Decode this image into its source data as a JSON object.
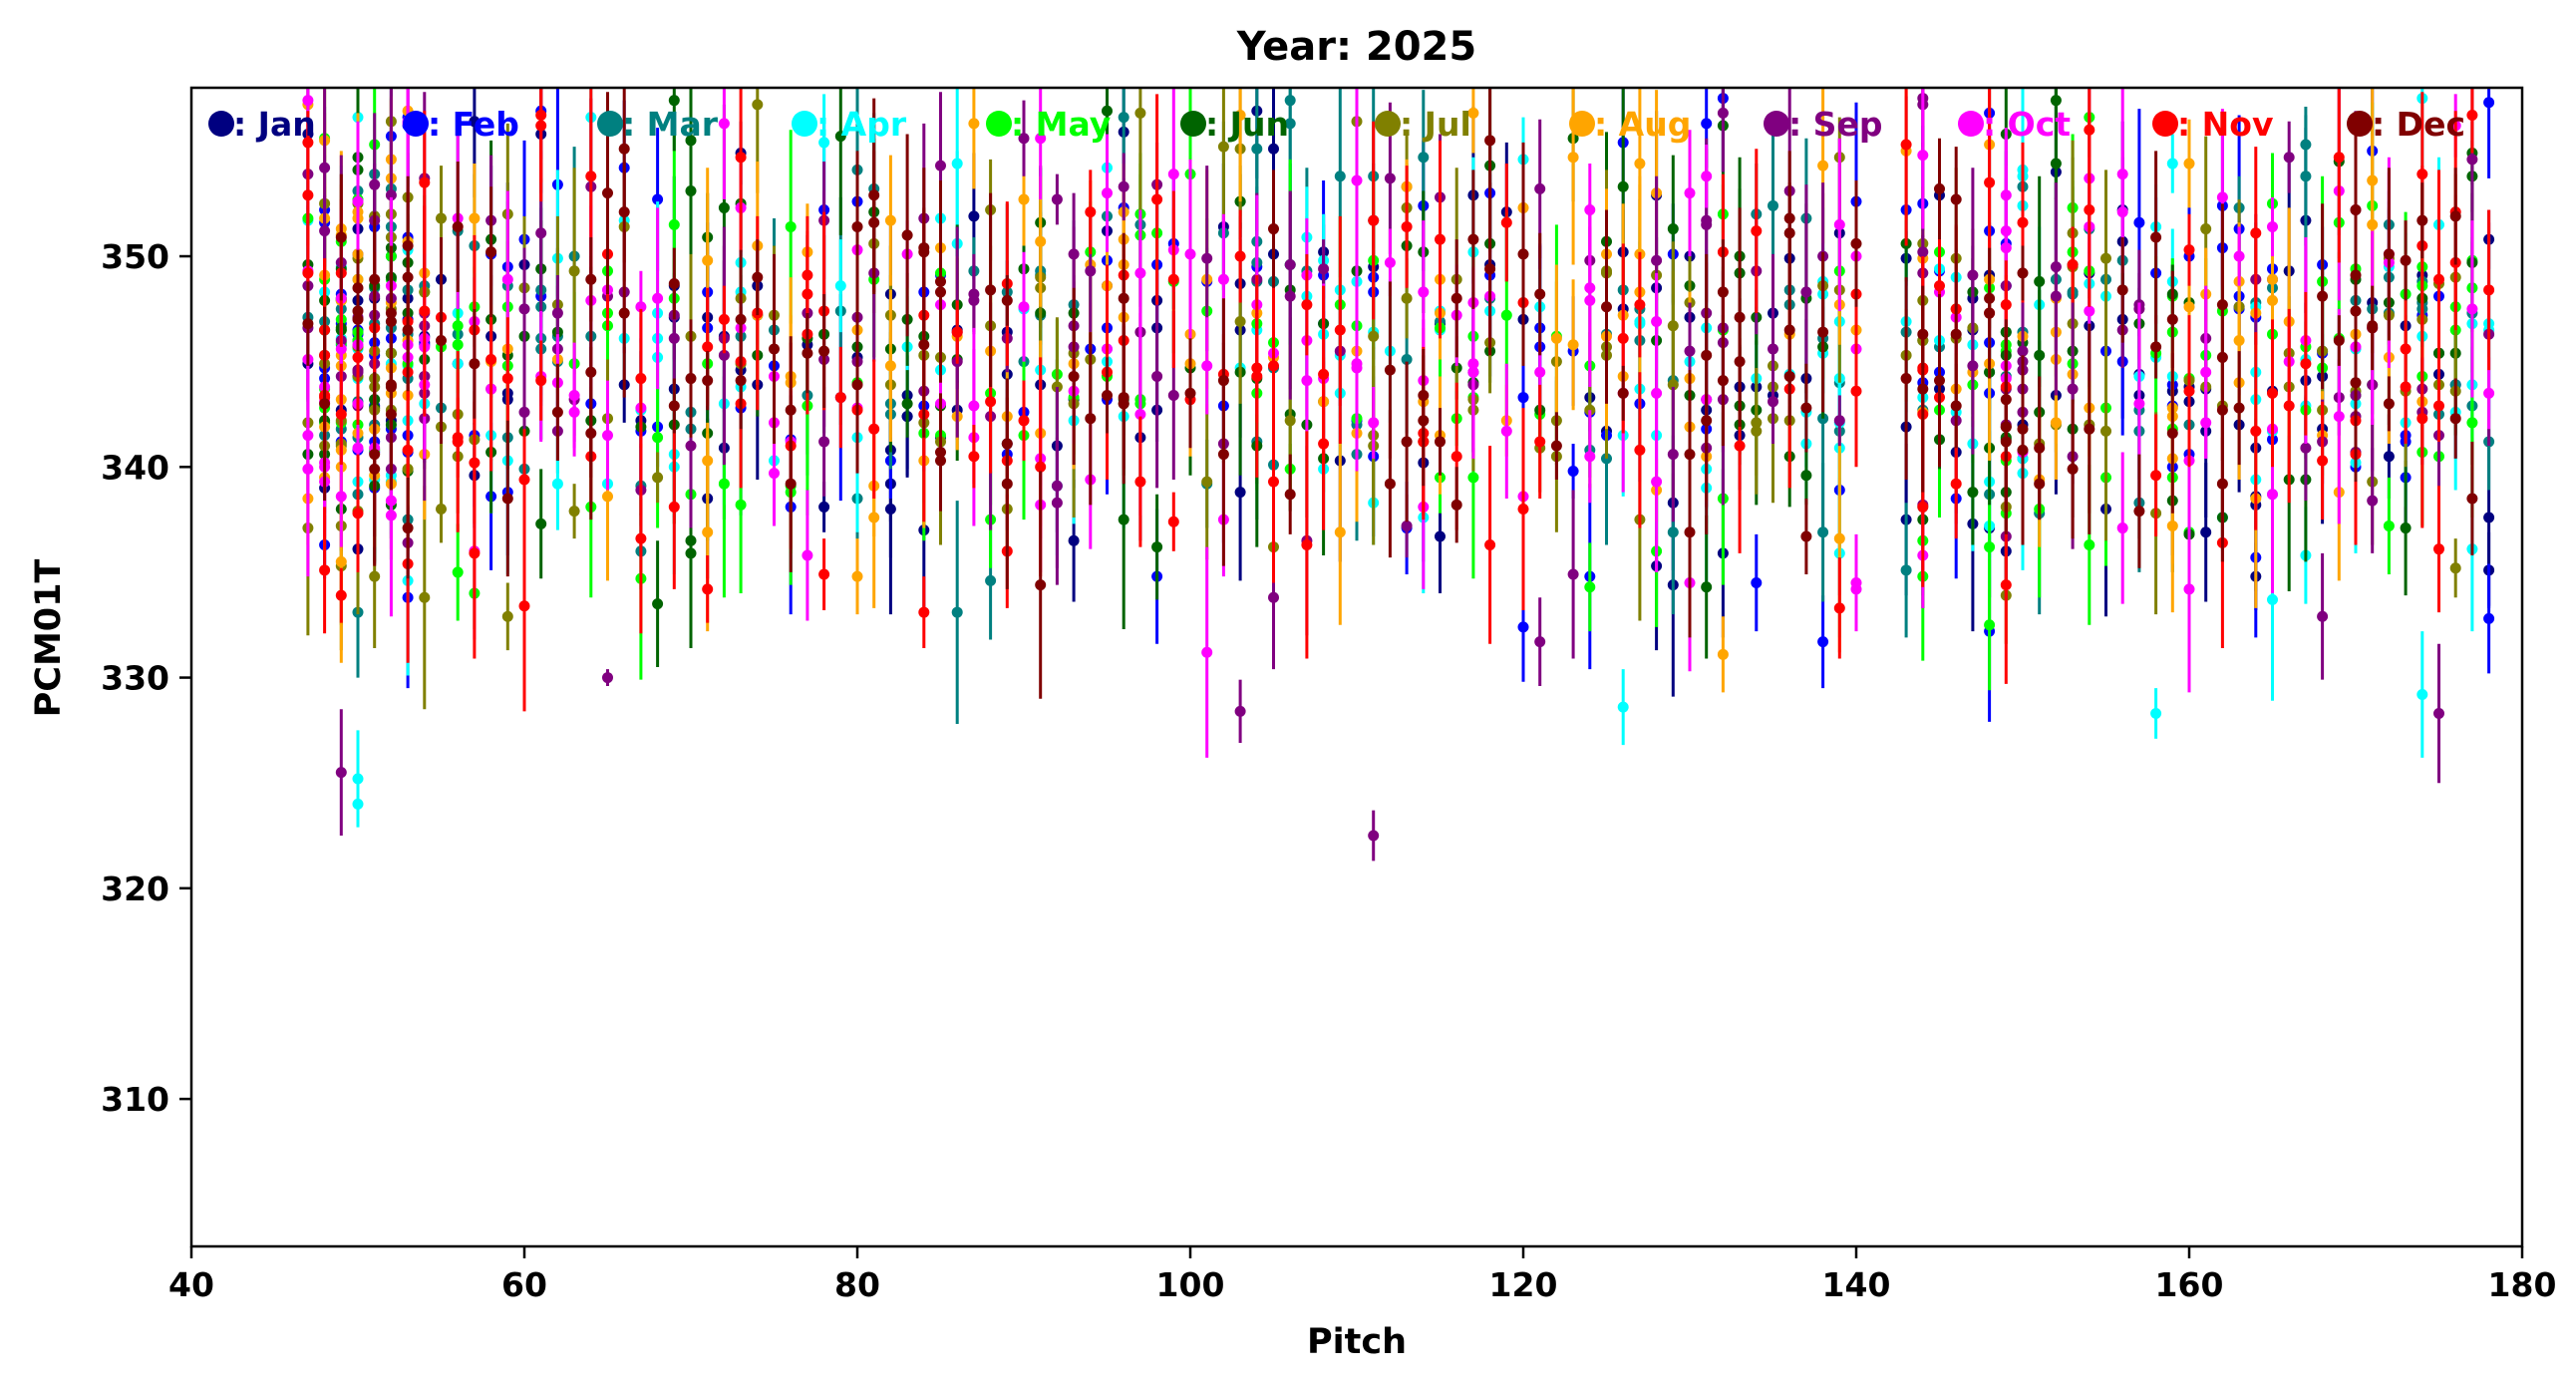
{
  "chart_data": {
    "type": "scatter",
    "title": "Year: 2025",
    "xlabel": "Pitch",
    "ylabel": "PCM01T",
    "xlim": [
      40,
      180
    ],
    "ylim": [
      303,
      358
    ],
    "xticks": [
      40,
      60,
      80,
      100,
      120,
      140,
      160,
      180
    ],
    "yticks": [
      310,
      320,
      330,
      340,
      350
    ],
    "grid": false,
    "legend_position": "top, inside plot, single row",
    "error_bars": true,
    "series": [
      {
        "name": ": Jan",
        "color": "#000080",
        "seed": 11
      },
      {
        "name": ": Feb",
        "color": "#0000ff",
        "seed": 23
      },
      {
        "name": ": Mar",
        "color": "#008080",
        "seed": 37
      },
      {
        "name": ": Apr",
        "color": "#00ffff",
        "seed": 41
      },
      {
        "name": ": May",
        "color": "#00ff00",
        "seed": 53
      },
      {
        "name": ": Jun",
        "color": "#006400",
        "seed": 67
      },
      {
        "name": ": Jul",
        "color": "#808000",
        "seed": 71
      },
      {
        "name": ": Aug",
        "color": "#ffa500",
        "seed": 83
      },
      {
        "name": ": Sep",
        "color": "#800080",
        "seed": 97
      },
      {
        "name": ": Oct",
        "color": "#ff00ff",
        "seed": 101
      },
      {
        "name": ": Nov",
        "color": "#ff0000",
        "seed": 113
      },
      {
        "name": ": Dec",
        "color": "#800000",
        "seed": 127
      }
    ],
    "outliers": [
      {
        "series": 8,
        "x": 49,
        "y": 325.5,
        "err": 3
      },
      {
        "series": 3,
        "x": 50,
        "y": 324,
        "err": 1
      },
      {
        "series": 3,
        "x": 50,
        "y": 325.2,
        "err": 2.3
      },
      {
        "series": 8,
        "x": 65,
        "y": 330,
        "err": 0.4
      },
      {
        "series": 8,
        "x": 103,
        "y": 328.4,
        "err": 1.5
      },
      {
        "series": 8,
        "x": 111,
        "y": 322.5,
        "err": 1.2
      },
      {
        "series": 3,
        "x": 126,
        "y": 328.6,
        "err": 1.8
      },
      {
        "series": 8,
        "x": 121,
        "y": 331.7,
        "err": 2.1
      },
      {
        "series": 3,
        "x": 158,
        "y": 328.3,
        "err": 1.2
      },
      {
        "series": 8,
        "x": 175,
        "y": 328.3,
        "err": 3.3
      },
      {
        "series": 3,
        "x": 174,
        "y": 329.2,
        "err": 3
      },
      {
        "series": 10,
        "x": 139,
        "y": 333.3,
        "err": 2.4
      },
      {
        "series": 9,
        "x": 140,
        "y": 334.2,
        "err": 1.8
      }
    ]
  }
}
